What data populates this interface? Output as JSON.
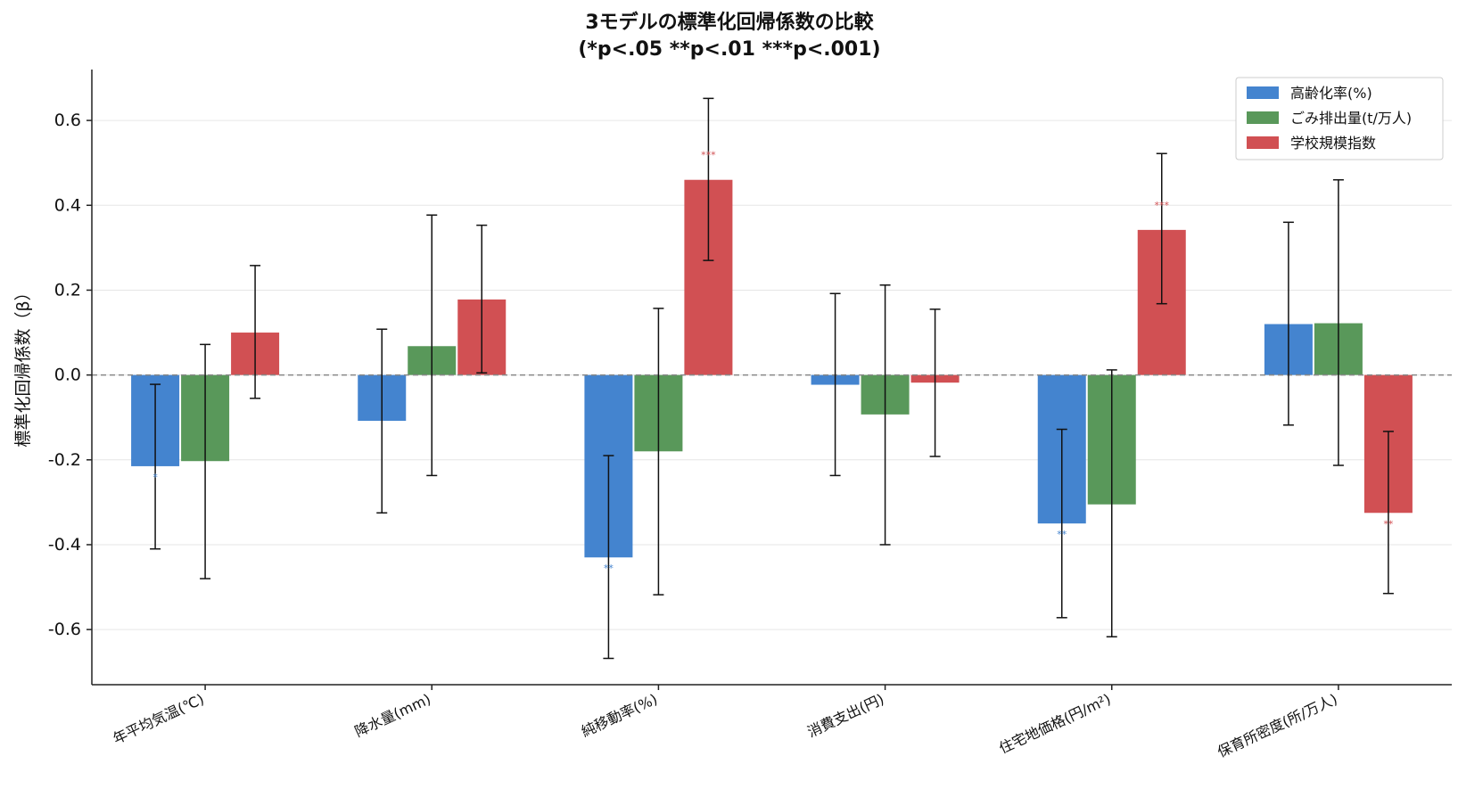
{
  "chart_data": {
    "type": "bar",
    "title_line1": "3モデルの標準化回帰係数の比較",
    "title_line2": "(*p<.05  **p<.01  ***p<.001)",
    "ylabel": "標準化回帰係数（β）",
    "xlabel": "",
    "ylim": [
      -0.73,
      0.72
    ],
    "yticks": [
      -0.6,
      -0.4,
      -0.2,
      0.0,
      0.2,
      0.4,
      0.6
    ],
    "ytick_labels": [
      "-0.6",
      "-0.4",
      "-0.2",
      "0.0",
      "0.2",
      "0.4",
      "0.6"
    ],
    "grid": "horizontal",
    "zero_line": "dashed",
    "legend_position": "top-right",
    "categories": [
      "年平均気温(℃)",
      "降水量(mm)",
      "純移動率(%)",
      "消費支出(円)",
      "住宅地価格(円/m²)",
      "保育所密度(所/万人)"
    ],
    "series": [
      {
        "name": "高齢化率(%)",
        "color": "#4484cf",
        "values": [
          -0.215,
          -0.108,
          -0.43,
          -0.023,
          -0.35,
          0.12
        ],
        "ci_low": [
          -0.41,
          -0.325,
          -0.668,
          -0.237,
          -0.572,
          -0.118
        ],
        "ci_high": [
          -0.022,
          0.108,
          -0.19,
          0.192,
          -0.128,
          0.36
        ],
        "sig": [
          "*",
          "",
          "**",
          "",
          "**",
          ""
        ]
      },
      {
        "name": "ごみ排出量(t/万人)",
        "color": "#59985a",
        "values": [
          -0.203,
          0.068,
          -0.18,
          -0.093,
          -0.305,
          0.122
        ],
        "ci_low": [
          -0.48,
          -0.237,
          -0.518,
          -0.4,
          -0.617,
          -0.213
        ],
        "ci_high": [
          0.072,
          0.377,
          0.157,
          0.212,
          0.012,
          0.46
        ],
        "sig": [
          "",
          "",
          "",
          "",
          "",
          ""
        ]
      },
      {
        "name": "学校規模指数",
        "color": "#d15053",
        "values": [
          0.1,
          0.178,
          0.46,
          -0.018,
          0.342,
          -0.325
        ],
        "ci_low": [
          -0.055,
          0.005,
          0.27,
          -0.192,
          0.168,
          -0.515
        ],
        "ci_high": [
          0.258,
          0.353,
          0.652,
          0.155,
          0.522,
          -0.133
        ],
        "sig": [
          "",
          "",
          "***",
          "",
          "***",
          "**"
        ]
      }
    ]
  }
}
